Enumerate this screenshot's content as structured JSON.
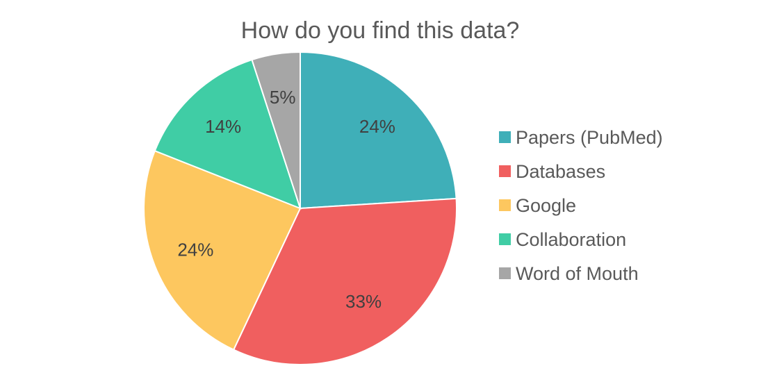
{
  "chart_data": {
    "type": "pie",
    "title": "How do you find this data?",
    "categories": [
      "Papers (PubMed)",
      "Databases",
      "Google",
      "Collaboration",
      "Word of Mouth"
    ],
    "values": [
      24,
      33,
      24,
      14,
      5
    ],
    "labels": [
      "24%",
      "33%",
      "24%",
      "14%",
      "5%"
    ],
    "colors": [
      "#3FAFB8",
      "#F05F5F",
      "#FDC75F",
      "#40CDA5",
      "#A6A6A6"
    ],
    "legend_position": "right"
  }
}
